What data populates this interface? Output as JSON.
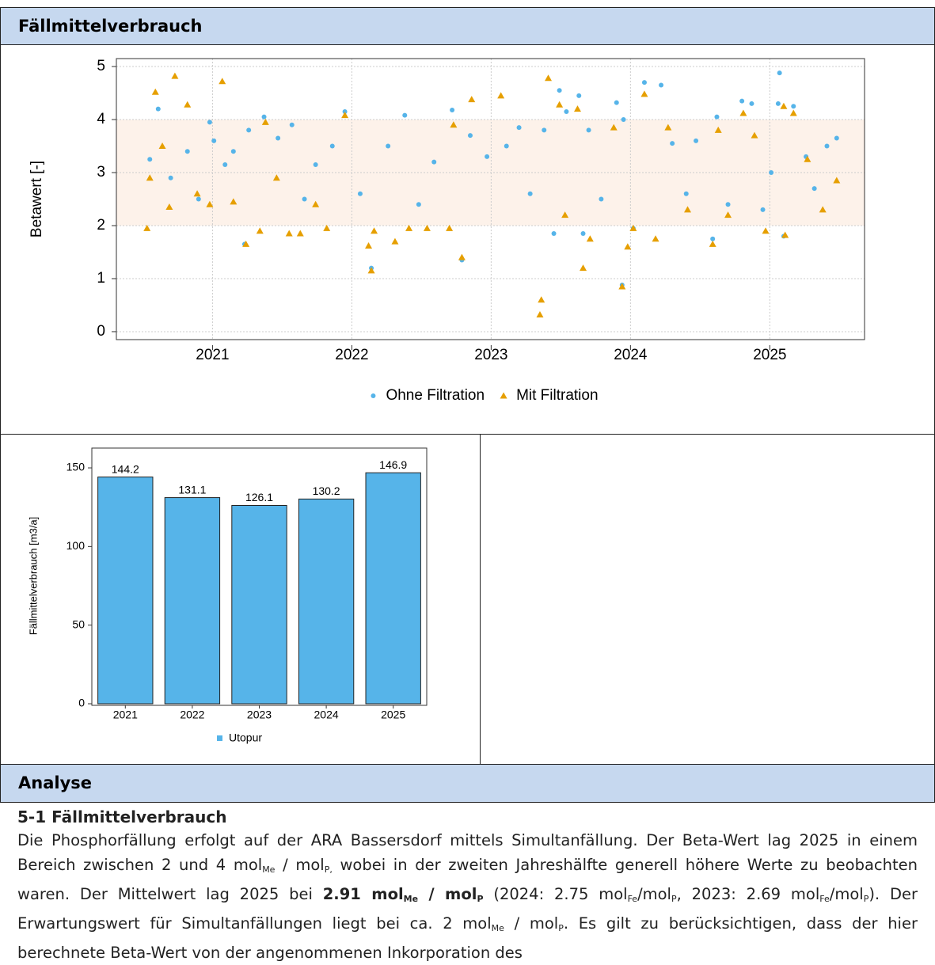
{
  "panel_title": "Fällmittelverbrauch",
  "chart_data": [
    {
      "type": "scatter",
      "ylabel": "Betawert [-]",
      "xlim": [
        2020.81,
        2026.18
      ],
      "ylim": [
        -0.15,
        5.15
      ],
      "xticks": [
        {
          "value": 2021.5,
          "label": "2021"
        },
        {
          "value": 2022.5,
          "label": "2022"
        },
        {
          "value": 2023.5,
          "label": "2023"
        },
        {
          "value": 2024.5,
          "label": "2024"
        },
        {
          "value": 2025.5,
          "label": "2025"
        }
      ],
      "yticks": [
        0,
        1,
        2,
        3,
        4,
        5
      ],
      "grid": true,
      "shaded_range": [
        2,
        4
      ],
      "shaded_color": "#fdf2ea",
      "legend": "bottom",
      "series": [
        {
          "name": "Ohne Filtration",
          "color": "#56b4e9",
          "marker": "circle",
          "x": [
            2021.05,
            2021.11,
            2021.2,
            2021.32,
            2021.4,
            2021.48,
            2021.51,
            2021.59,
            2021.65,
            2021.73,
            2021.76,
            2021.87,
            2021.97,
            2022.07,
            2022.16,
            2022.24,
            2022.36,
            2022.45,
            2022.56,
            2022.64,
            2022.76,
            2022.88,
            2022.98,
            2023.09,
            2023.22,
            2023.29,
            2023.35,
            2023.47,
            2023.61,
            2023.7,
            2023.78,
            2023.88,
            2023.95,
            2023.99,
            2024.04,
            2024.13,
            2024.16,
            2024.2,
            2024.29,
            2024.4,
            2024.44,
            2024.45,
            2024.52,
            2024.6,
            2024.72,
            2024.8,
            2024.9,
            2024.97,
            2025.09,
            2025.12,
            2025.2,
            2025.3,
            2025.37,
            2025.45,
            2025.51,
            2025.56,
            2025.57,
            2025.6,
            2025.67,
            2025.76,
            2025.82,
            2025.91,
            2025.98
          ],
          "values": [
            3.25,
            4.2,
            2.9,
            3.4,
            2.5,
            3.95,
            3.6,
            3.15,
            3.4,
            1.65,
            3.8,
            4.05,
            3.65,
            3.9,
            2.5,
            3.15,
            3.5,
            4.15,
            2.6,
            1.2,
            3.5,
            4.08,
            2.4,
            3.2,
            4.18,
            1.35,
            3.7,
            3.3,
            3.5,
            3.85,
            2.6,
            3.8,
            1.85,
            4.55,
            4.15,
            4.45,
            1.85,
            3.8,
            2.5,
            4.32,
            0.88,
            4.0,
            1.95,
            4.7,
            4.65,
            3.55,
            2.6,
            3.6,
            1.75,
            4.05,
            2.4,
            4.35,
            4.3,
            2.3,
            3.0,
            4.3,
            4.88,
            1.8,
            4.25,
            3.3,
            2.7,
            3.5,
            3.65
          ]
        },
        {
          "name": "Mit Filtration",
          "color": "#e69f00",
          "marker": "triangle",
          "x": [
            2021.03,
            2021.05,
            2021.09,
            2021.14,
            2021.19,
            2021.23,
            2021.32,
            2021.39,
            2021.48,
            2021.57,
            2021.65,
            2021.74,
            2021.84,
            2021.88,
            2021.96,
            2022.05,
            2022.13,
            2022.24,
            2022.32,
            2022.45,
            2022.62,
            2022.64,
            2022.66,
            2022.81,
            2022.91,
            2023.04,
            2023.2,
            2023.23,
            2023.29,
            2023.36,
            2023.57,
            2023.86,
            2023.85,
            2023.91,
            2023.99,
            2024.03,
            2024.12,
            2024.16,
            2024.21,
            2024.38,
            2024.44,
            2024.48,
            2024.52,
            2024.6,
            2024.68,
            2024.77,
            2024.91,
            2025.09,
            2025.13,
            2025.2,
            2025.31,
            2025.39,
            2025.47,
            2025.6,
            2025.61,
            2025.67,
            2025.77,
            2025.88,
            2025.98
          ],
          "values": [
            1.95,
            2.9,
            4.52,
            3.5,
            2.35,
            4.82,
            4.28,
            2.6,
            2.4,
            4.72,
            2.45,
            1.65,
            1.9,
            3.95,
            2.9,
            1.85,
            1.85,
            2.4,
            1.95,
            4.08,
            1.62,
            1.15,
            1.9,
            1.7,
            1.95,
            1.95,
            1.95,
            3.9,
            1.4,
            4.38,
            4.45,
            0.6,
            0.32,
            4.78,
            4.28,
            2.2,
            4.2,
            1.2,
            1.75,
            3.85,
            0.85,
            1.6,
            1.95,
            4.48,
            1.75,
            3.85,
            2.3,
            1.65,
            3.8,
            2.2,
            4.12,
            3.7,
            1.9,
            4.25,
            1.82,
            4.12,
            3.25,
            2.3,
            2.85
          ]
        }
      ]
    },
    {
      "type": "bar",
      "ylabel": "Fällmittelverbrauch [m3/a]",
      "categories": [
        "2021",
        "2022",
        "2023",
        "2024",
        "2025"
      ],
      "values": [
        144.2,
        131.1,
        126.1,
        130.2,
        146.9
      ],
      "color": "#56b4e9",
      "legend_name": "Utopur",
      "ylim": [
        0,
        162.6
      ],
      "yticks": [
        0,
        50,
        100,
        150
      ]
    }
  ],
  "analysis": {
    "title": "Analyse",
    "heading": "5-1 Fällmittelverbrauch",
    "runs": [
      {
        "text": "Die Phosphorfällung erfolgt auf der ARA Bassersdorf mittels Simultanfällung. Der Beta-Wert lag 2025 in einem Bereich zwischen 2 und 4 mol",
        "style": "normal"
      },
      {
        "text": "Me",
        "style": "sub"
      },
      {
        "text": " / mol",
        "style": "normal"
      },
      {
        "text": "P,",
        "style": "sub"
      },
      {
        "text": " wobei in der zweiten Jahreshälfte generell höhere Werte zu beobachten waren. Der Mittelwert lag 2025 bei ",
        "style": "normal"
      },
      {
        "text": "2.91 mol",
        "style": "bold"
      },
      {
        "text": "Me",
        "style": "bold-sub"
      },
      {
        "text": " / mol",
        "style": "bold"
      },
      {
        "text": "P",
        "style": "bold-sub"
      },
      {
        "text": " (2024: 2.75 mol",
        "style": "normal"
      },
      {
        "text": "Fe",
        "style": "sub"
      },
      {
        "text": "/mol",
        "style": "normal"
      },
      {
        "text": "P",
        "style": "sub"
      },
      {
        "text": ", 2023: 2.69 mol",
        "style": "normal"
      },
      {
        "text": "Fe",
        "style": "sub"
      },
      {
        "text": "/mol",
        "style": "normal"
      },
      {
        "text": "P",
        "style": "sub"
      },
      {
        "text": "). Der Erwartungswert für Simultanfällungen liegt bei ca. 2 mol",
        "style": "normal"
      },
      {
        "text": "Me",
        "style": "sub"
      },
      {
        "text": " / mol",
        "style": "normal"
      },
      {
        "text": "P",
        "style": "sub"
      },
      {
        "text": ". Es gilt zu berücksichtigen, dass der hier berechnete Beta-Wert von der angenommenen Inkorporation des",
        "style": "normal"
      }
    ]
  }
}
